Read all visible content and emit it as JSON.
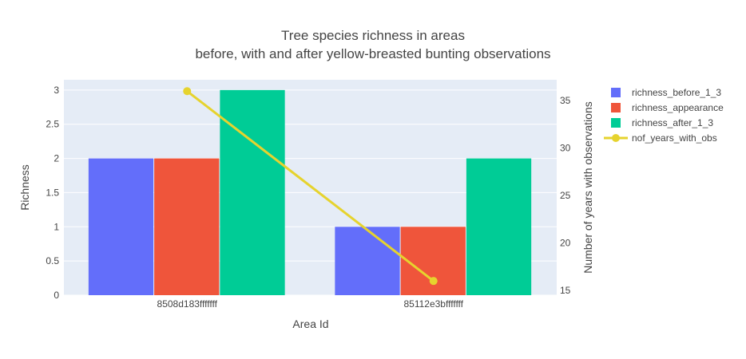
{
  "chart_data": {
    "type": "bar",
    "title_lines": [
      "Tree species richness in areas",
      "before, with and after yellow-breasted bunting observations"
    ],
    "xlabel": "Area Id",
    "ylabel": "Richness",
    "y2label": "Number of years with observations",
    "categories": [
      "8508d183fffffff",
      "85112e3bfffffff"
    ],
    "ylim": [
      0,
      3.15
    ],
    "y2lim": [
      14.5,
      37.2
    ],
    "yticks": [
      0,
      0.5,
      1,
      1.5,
      2,
      2.5,
      3
    ],
    "ytick_labels": [
      "0",
      "0.5",
      "1",
      "1.5",
      "2",
      "2.5",
      "3"
    ],
    "y2ticks": [
      15,
      20,
      25,
      30,
      35
    ],
    "y2tick_labels": [
      "15",
      "20",
      "25",
      "30",
      "35"
    ],
    "grid": true,
    "legend_position": "right",
    "series": [
      {
        "name": "richness_before_1_3",
        "kind": "bar",
        "axis": "y",
        "color": "#636efa",
        "values": [
          2,
          1
        ]
      },
      {
        "name": "richness_appearance",
        "kind": "bar",
        "axis": "y",
        "color": "#ef553b",
        "values": [
          2,
          1
        ]
      },
      {
        "name": "richness_after_1_3",
        "kind": "bar",
        "axis": "y",
        "color": "#00cc96",
        "values": [
          3,
          2
        ]
      },
      {
        "name": "nof_years_with_obs",
        "kind": "line",
        "axis": "y2",
        "color": "#e6d32e",
        "values": [
          36,
          16
        ]
      }
    ]
  }
}
